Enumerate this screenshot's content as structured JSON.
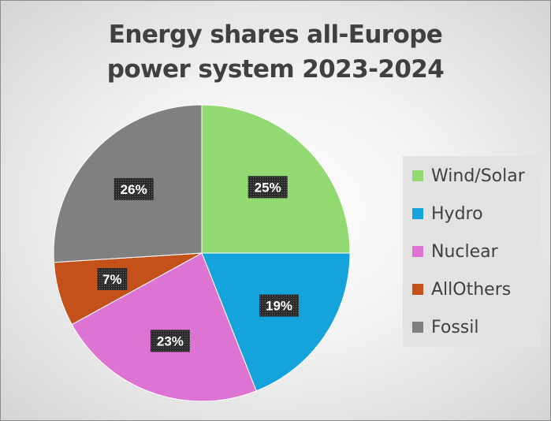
{
  "chart_data": {
    "type": "pie",
    "title": [
      "Energy shares all-Europe",
      "power system 2023-2024"
    ],
    "categories": [
      "Wind/Solar",
      "Hydro",
      "Nuclear",
      "AllOthers",
      "Fossil"
    ],
    "values": [
      25,
      19,
      23,
      7,
      26
    ],
    "data_labels": [
      "25%",
      "19%",
      "23%",
      "7%",
      "26%"
    ],
    "colors": [
      "#92d972",
      "#15a3dc",
      "#dd74d3",
      "#c4501a",
      "#808080"
    ],
    "start_angle_deg": 0,
    "direction": "clockwise",
    "legend_position": "right"
  }
}
